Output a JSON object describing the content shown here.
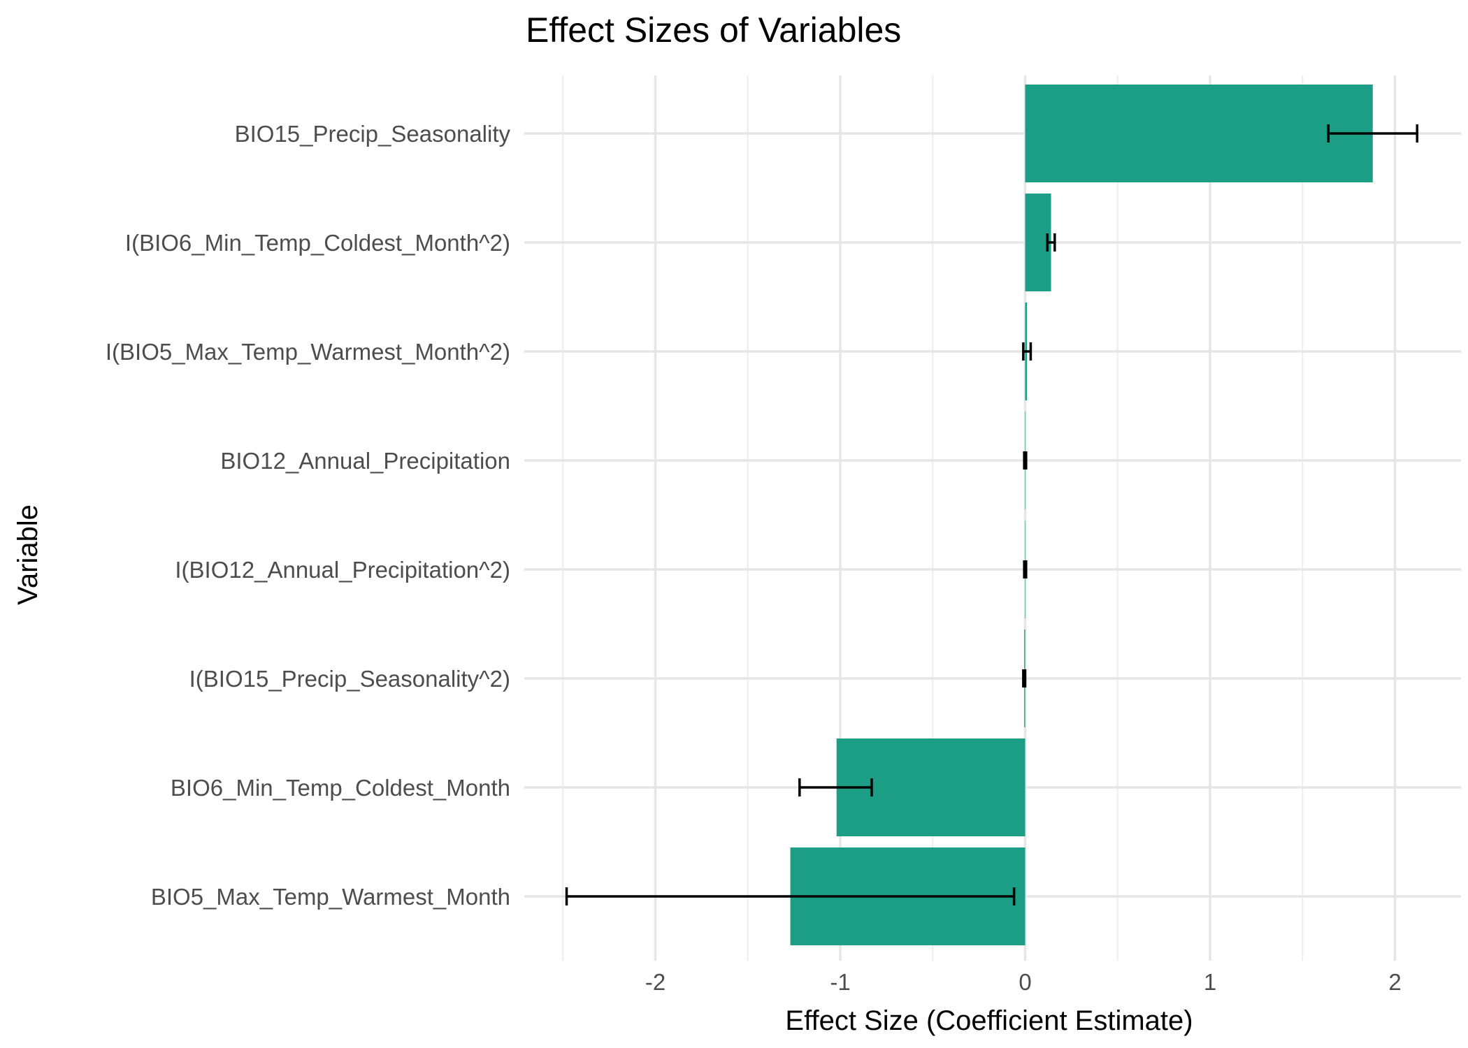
{
  "chart_data": {
    "type": "bar",
    "orientation": "horizontal",
    "title": "Effect Sizes of Variables",
    "xlabel": "Effect Size (Coefficient Estimate)",
    "ylabel": "Variable",
    "xlim": [
      -2.5,
      2.35
    ],
    "x_ticks": [
      -2,
      -1,
      0,
      1,
      2
    ],
    "x_tick_labels": [
      "-2",
      "-1",
      "0",
      "1",
      "2"
    ],
    "bar_color": "#1b9e85",
    "error_bar_color": "#000000",
    "grid": true,
    "legend": "none",
    "categories": [
      "BIO15_Precip_Seasonality",
      "I(BIO6_Min_Temp_Coldest_Month^2)",
      "I(BIO5_Max_Temp_Warmest_Month^2)",
      "BIO12_Annual_Precipitation",
      "I(BIO12_Annual_Precipitation^2)",
      "I(BIO15_Precip_Seasonality^2)",
      "BIO6_Min_Temp_Coldest_Month",
      "BIO5_Max_Temp_Warmest_Month"
    ],
    "values": [
      1.88,
      0.14,
      0.01,
      0.0,
      0.0,
      -0.005,
      -1.02,
      -1.27
    ],
    "error_low": [
      1.64,
      0.12,
      -0.01,
      -0.005,
      -0.005,
      -0.01,
      -1.22,
      -2.48
    ],
    "error_high": [
      2.12,
      0.16,
      0.03,
      0.005,
      0.005,
      0.0,
      -0.83,
      -0.06
    ]
  }
}
